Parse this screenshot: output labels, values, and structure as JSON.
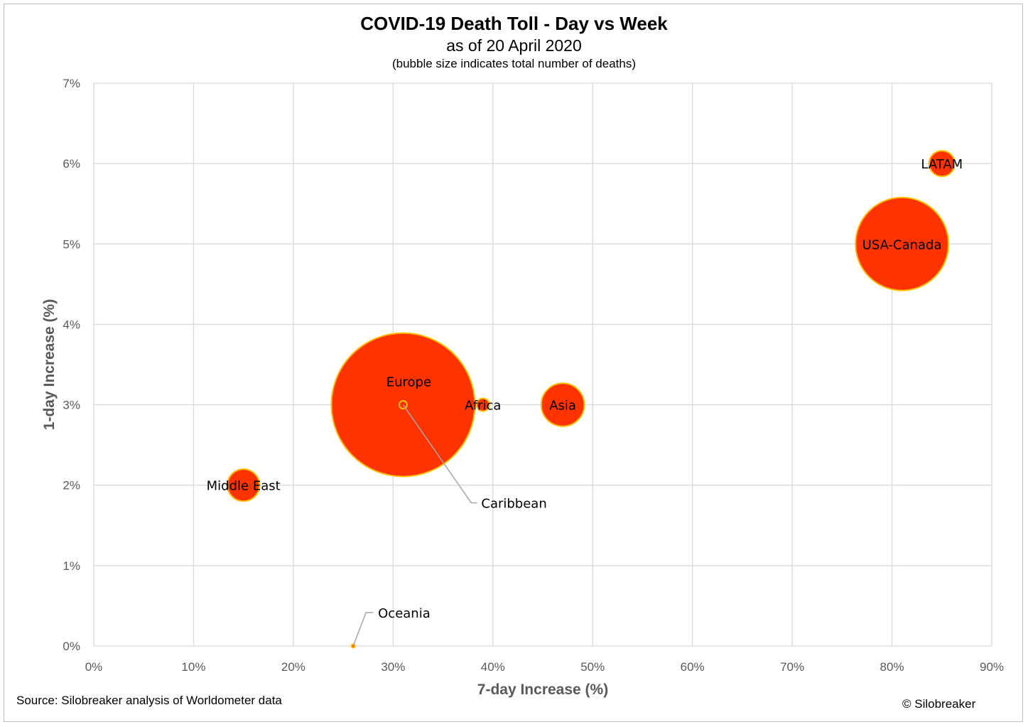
{
  "header": {
    "title": "COVID-19 Death Toll - Day vs Week",
    "subtitle": "as of 20 April 2020",
    "note": "(bubble size indicates total number of deaths)"
  },
  "footer": {
    "source": "Source: Silobreaker analysis of Worldometer data",
    "copyright": "© Silobreaker"
  },
  "colors": {
    "bubble_fill": "#ff3300",
    "bubble_stroke": "#ffc000",
    "grid": "#d9d9d9",
    "leader_line": "#a6a6a6"
  },
  "chart_data": {
    "type": "scatter",
    "subtype": "bubble",
    "xlabel": "7-day Increase (%)",
    "ylabel": "1-day Increase (%)",
    "xlim": [
      0,
      90
    ],
    "ylim": [
      0,
      7
    ],
    "x_ticks": [
      "0%",
      "10%",
      "20%",
      "30%",
      "40%",
      "50%",
      "60%",
      "70%",
      "80%",
      "90%"
    ],
    "y_ticks": [
      "0%",
      "1%",
      "2%",
      "3%",
      "4%",
      "5%",
      "6%",
      "7%"
    ],
    "grid": true,
    "points": [
      {
        "label": "Europe",
        "x": 31,
        "y": 3,
        "size": 100
      },
      {
        "label": "USA-Canada",
        "x": 81,
        "y": 5,
        "size": 42
      },
      {
        "label": "Asia",
        "x": 47,
        "y": 3,
        "size": 9
      },
      {
        "label": "Middle East",
        "x": 15,
        "y": 2,
        "size": 5
      },
      {
        "label": "LATAM",
        "x": 85,
        "y": 6,
        "size": 3.2
      },
      {
        "label": "Africa",
        "x": 39,
        "y": 3,
        "size": 0.8
      },
      {
        "label": "Caribbean",
        "x": 31,
        "y": 3,
        "size": 0.3
      },
      {
        "label": "Oceania",
        "x": 26,
        "y": 0,
        "size": 0.05
      }
    ]
  }
}
